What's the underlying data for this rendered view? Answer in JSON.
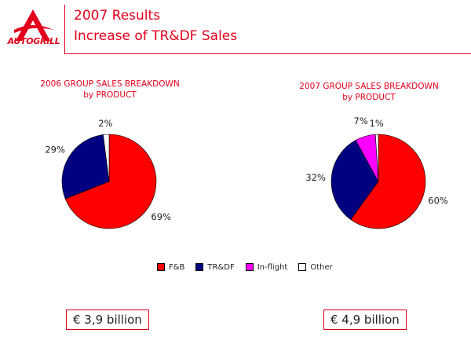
{
  "header": {
    "title": "2007 Results",
    "subtitle": "Increase of TR&DF Sales",
    "logo_text": "AUTOGRILL"
  },
  "colors": {
    "brand_red": "#e3001b",
    "fb": "#ff0000",
    "trdf": "#000080",
    "inflight": "#ff00ff",
    "other": "#ffffff"
  },
  "chart_data": [
    {
      "type": "pie",
      "title": "2006 GROUP SALES BREAKDOWN",
      "subtitle": "by PRODUCT",
      "categories": [
        "F&B",
        "TR&DF",
        "Other"
      ],
      "values": [
        69,
        29,
        2
      ],
      "labels": [
        "69%",
        "29%",
        "2%"
      ],
      "total": "€ 3,9 billion"
    },
    {
      "type": "pie",
      "title": "2007 GROUP SALES BREAKDOWN",
      "subtitle": "by PRODUCT",
      "categories": [
        "F&B",
        "TR&DF",
        "In-flight",
        "Other"
      ],
      "values": [
        60,
        32,
        7,
        1
      ],
      "labels": [
        "60%",
        "32%",
        "7%",
        "1%"
      ],
      "total": "€ 4,9 billion"
    }
  ],
  "legend": [
    {
      "label": "F&B",
      "color": "#ff0000"
    },
    {
      "label": "TR&DF",
      "color": "#000080"
    },
    {
      "label": "In-flight",
      "color": "#ff00ff"
    },
    {
      "label": "Other",
      "color": "#ffffff"
    }
  ]
}
